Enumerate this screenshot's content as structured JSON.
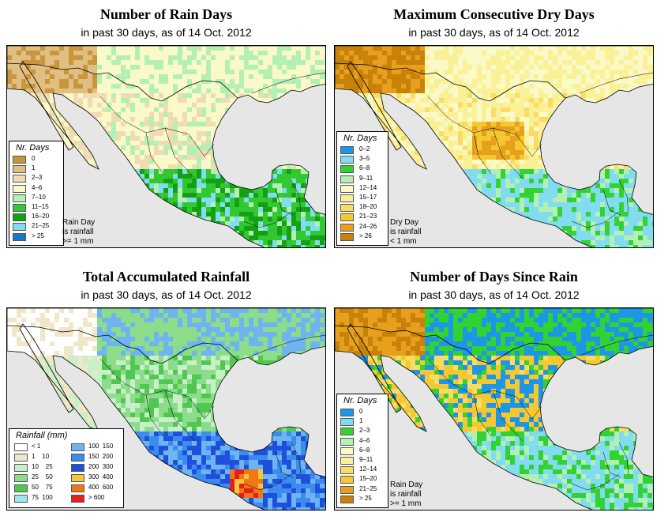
{
  "panels": [
    {
      "title": "Number of Rain Days",
      "subtitle": "in past 30 days, as of  14 Oct. 2012",
      "legend_title": "Nr. Days",
      "legend": [
        {
          "label": "0",
          "color": "#c8963c"
        },
        {
          "label": "1",
          "color": "#e1be82"
        },
        {
          "label": "2–3",
          "color": "#f0dcb4"
        },
        {
          "label": "4–6",
          "color": "#fafac8"
        },
        {
          "label": "7–10",
          "color": "#b4f0b4"
        },
        {
          "label": "11–15",
          "color": "#32c832"
        },
        {
          "label": "16–20",
          "color": "#14a014"
        },
        {
          "label": "21–25",
          "color": "#82dcf0"
        },
        {
          "label": "> 25",
          "color": "#1478c8"
        }
      ],
      "note": [
        "Rain Day",
        "is rainfall",
        ">= 1 mm"
      ]
    },
    {
      "title": "Maximum Consecutive Dry Days",
      "subtitle": "in past 30 days, as of  14 Oct. 2012",
      "legend_title": "Nr. Days",
      "legend": [
        {
          "label": "0–2",
          "color": "#1e96e6"
        },
        {
          "label": "3–5",
          "color": "#82dcf0"
        },
        {
          "label": "6–8",
          "color": "#32d232"
        },
        {
          "label": "9–11",
          "color": "#b4f0b4"
        },
        {
          "label": "12–14",
          "color": "#fafac8"
        },
        {
          "label": "15–17",
          "color": "#faf096"
        },
        {
          "label": "18–20",
          "color": "#fadc64"
        },
        {
          "label": "21–23",
          "color": "#f5c832"
        },
        {
          "label": "24–26",
          "color": "#e6a01e"
        },
        {
          "label": "> 26",
          "color": "#c8820a"
        }
      ],
      "note": [
        "Dry Day",
        "is rainfall",
        "< 1 mm"
      ]
    },
    {
      "title": "Total Accumulated Rainfall",
      "subtitle": "in past 30 days, as of  14 Oct. 2012",
      "legend_title": "Rainfall (mm)",
      "legend": [
        {
          "label": "< 1",
          "color": "#ffffff"
        },
        {
          "label": "1    10",
          "color": "#f0e6c8"
        },
        {
          "label": "10    25",
          "color": "#c8f0c8"
        },
        {
          "label": "25    50",
          "color": "#8cdc8c"
        },
        {
          "label": "50    75",
          "color": "#50c850"
        },
        {
          "label": "75  100",
          "color": "#a0e6f5"
        },
        {
          "label": "100  150",
          "color": "#6eb4f0"
        },
        {
          "label": "150  200",
          "color": "#3c8cf0"
        },
        {
          "label": "200  300",
          "color": "#1e50dc"
        },
        {
          "label": "300  400",
          "color": "#f5c83c"
        },
        {
          "label": "400  600",
          "color": "#f07814"
        },
        {
          "label": "> 600",
          "color": "#e61e1e"
        }
      ],
      "note": []
    },
    {
      "title": "Number of Days Since Rain",
      "subtitle": "in past 30 days, as of  14 Oct. 2012",
      "legend_title": "Nr. Days",
      "legend": [
        {
          "label": "0",
          "color": "#1e96e6"
        },
        {
          "label": "1",
          "color": "#82dcf0"
        },
        {
          "label": "2–3",
          "color": "#32d232"
        },
        {
          "label": "4–6",
          "color": "#b4f0b4"
        },
        {
          "label": "6–8",
          "color": "#fafac8"
        },
        {
          "label": "9–11",
          "color": "#faf096"
        },
        {
          "label": "12–14",
          "color": "#fadc64"
        },
        {
          "label": "15–20",
          "color": "#f5c832"
        },
        {
          "label": "21–25",
          "color": "#e6a01e"
        },
        {
          "label": "> 25",
          "color": "#c8820a"
        }
      ],
      "note": [
        "Rain Day",
        "is rainfall",
        ">= 1 mm"
      ]
    }
  ],
  "colors": {
    "ocean": "#e6e6e6",
    "outline": "#000000"
  }
}
